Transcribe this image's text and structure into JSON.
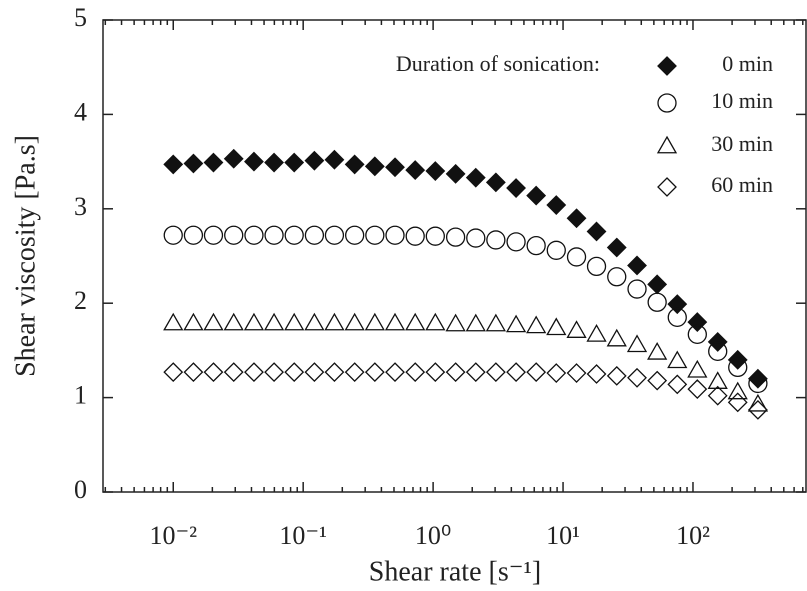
{
  "chart_data": {
    "type": "scatter",
    "x_label": "Shear rate [s⁻¹]",
    "y_label": "Shear viscosity [Pa.s]",
    "legend_title": "Duration of sonication:",
    "log_x": true,
    "xlim": [
      0.00288,
      741
    ],
    "ylim": [
      0,
      5
    ],
    "xticks": [
      {
        "value": 0.01,
        "label": "10⁻²"
      },
      {
        "value": 0.1,
        "label": "10⁻¹"
      },
      {
        "value": 1,
        "label": "10⁰"
      },
      {
        "value": 10,
        "label": "10¹"
      },
      {
        "value": 100,
        "label": "10²"
      }
    ],
    "yticks": [
      0,
      1,
      2,
      3,
      4,
      5
    ],
    "x": [
      0.01,
      0.0143,
      0.0204,
      0.0292,
      0.0418,
      0.0597,
      0.0853,
      0.122,
      0.174,
      0.249,
      0.356,
      0.509,
      0.728,
      1.04,
      1.49,
      2.13,
      3.04,
      4.35,
      6.21,
      8.87,
      12.7,
      18.1,
      25.9,
      37.1,
      53.0,
      75.7,
      108,
      155,
      221,
      316
    ],
    "series": [
      {
        "name": "0 min",
        "color": "#111111",
        "marker": "diamond",
        "filled": true,
        "values": [
          3.47,
          3.48,
          3.49,
          3.53,
          3.5,
          3.49,
          3.49,
          3.51,
          3.52,
          3.47,
          3.45,
          3.44,
          3.41,
          3.4,
          3.37,
          3.33,
          3.28,
          3.22,
          3.14,
          3.04,
          2.9,
          2.76,
          2.59,
          2.4,
          2.2,
          1.99,
          1.8,
          1.59,
          1.4,
          1.2
        ]
      },
      {
        "name": "10 min",
        "color": "#111111",
        "marker": "circle",
        "filled": false,
        "values": [
          2.72,
          2.72,
          2.72,
          2.72,
          2.72,
          2.72,
          2.72,
          2.72,
          2.72,
          2.72,
          2.72,
          2.72,
          2.71,
          2.71,
          2.7,
          2.69,
          2.67,
          2.65,
          2.61,
          2.56,
          2.49,
          2.39,
          2.28,
          2.15,
          2.01,
          1.85,
          1.67,
          1.49,
          1.32,
          1.15
        ]
      },
      {
        "name": "30 min",
        "color": "#111111",
        "marker": "triangle",
        "filled": false,
        "values": [
          1.79,
          1.79,
          1.79,
          1.79,
          1.79,
          1.79,
          1.79,
          1.79,
          1.79,
          1.79,
          1.79,
          1.79,
          1.79,
          1.79,
          1.78,
          1.78,
          1.78,
          1.77,
          1.76,
          1.74,
          1.71,
          1.67,
          1.62,
          1.56,
          1.48,
          1.39,
          1.29,
          1.17,
          1.06,
          0.93
        ]
      },
      {
        "name": "60 min",
        "color": "#111111",
        "marker": "diamond",
        "filled": false,
        "values": [
          1.27,
          1.27,
          1.27,
          1.27,
          1.27,
          1.27,
          1.27,
          1.27,
          1.27,
          1.27,
          1.27,
          1.27,
          1.27,
          1.27,
          1.27,
          1.27,
          1.27,
          1.27,
          1.27,
          1.26,
          1.26,
          1.25,
          1.23,
          1.21,
          1.18,
          1.14,
          1.09,
          1.02,
          0.95,
          0.87
        ]
      }
    ]
  }
}
